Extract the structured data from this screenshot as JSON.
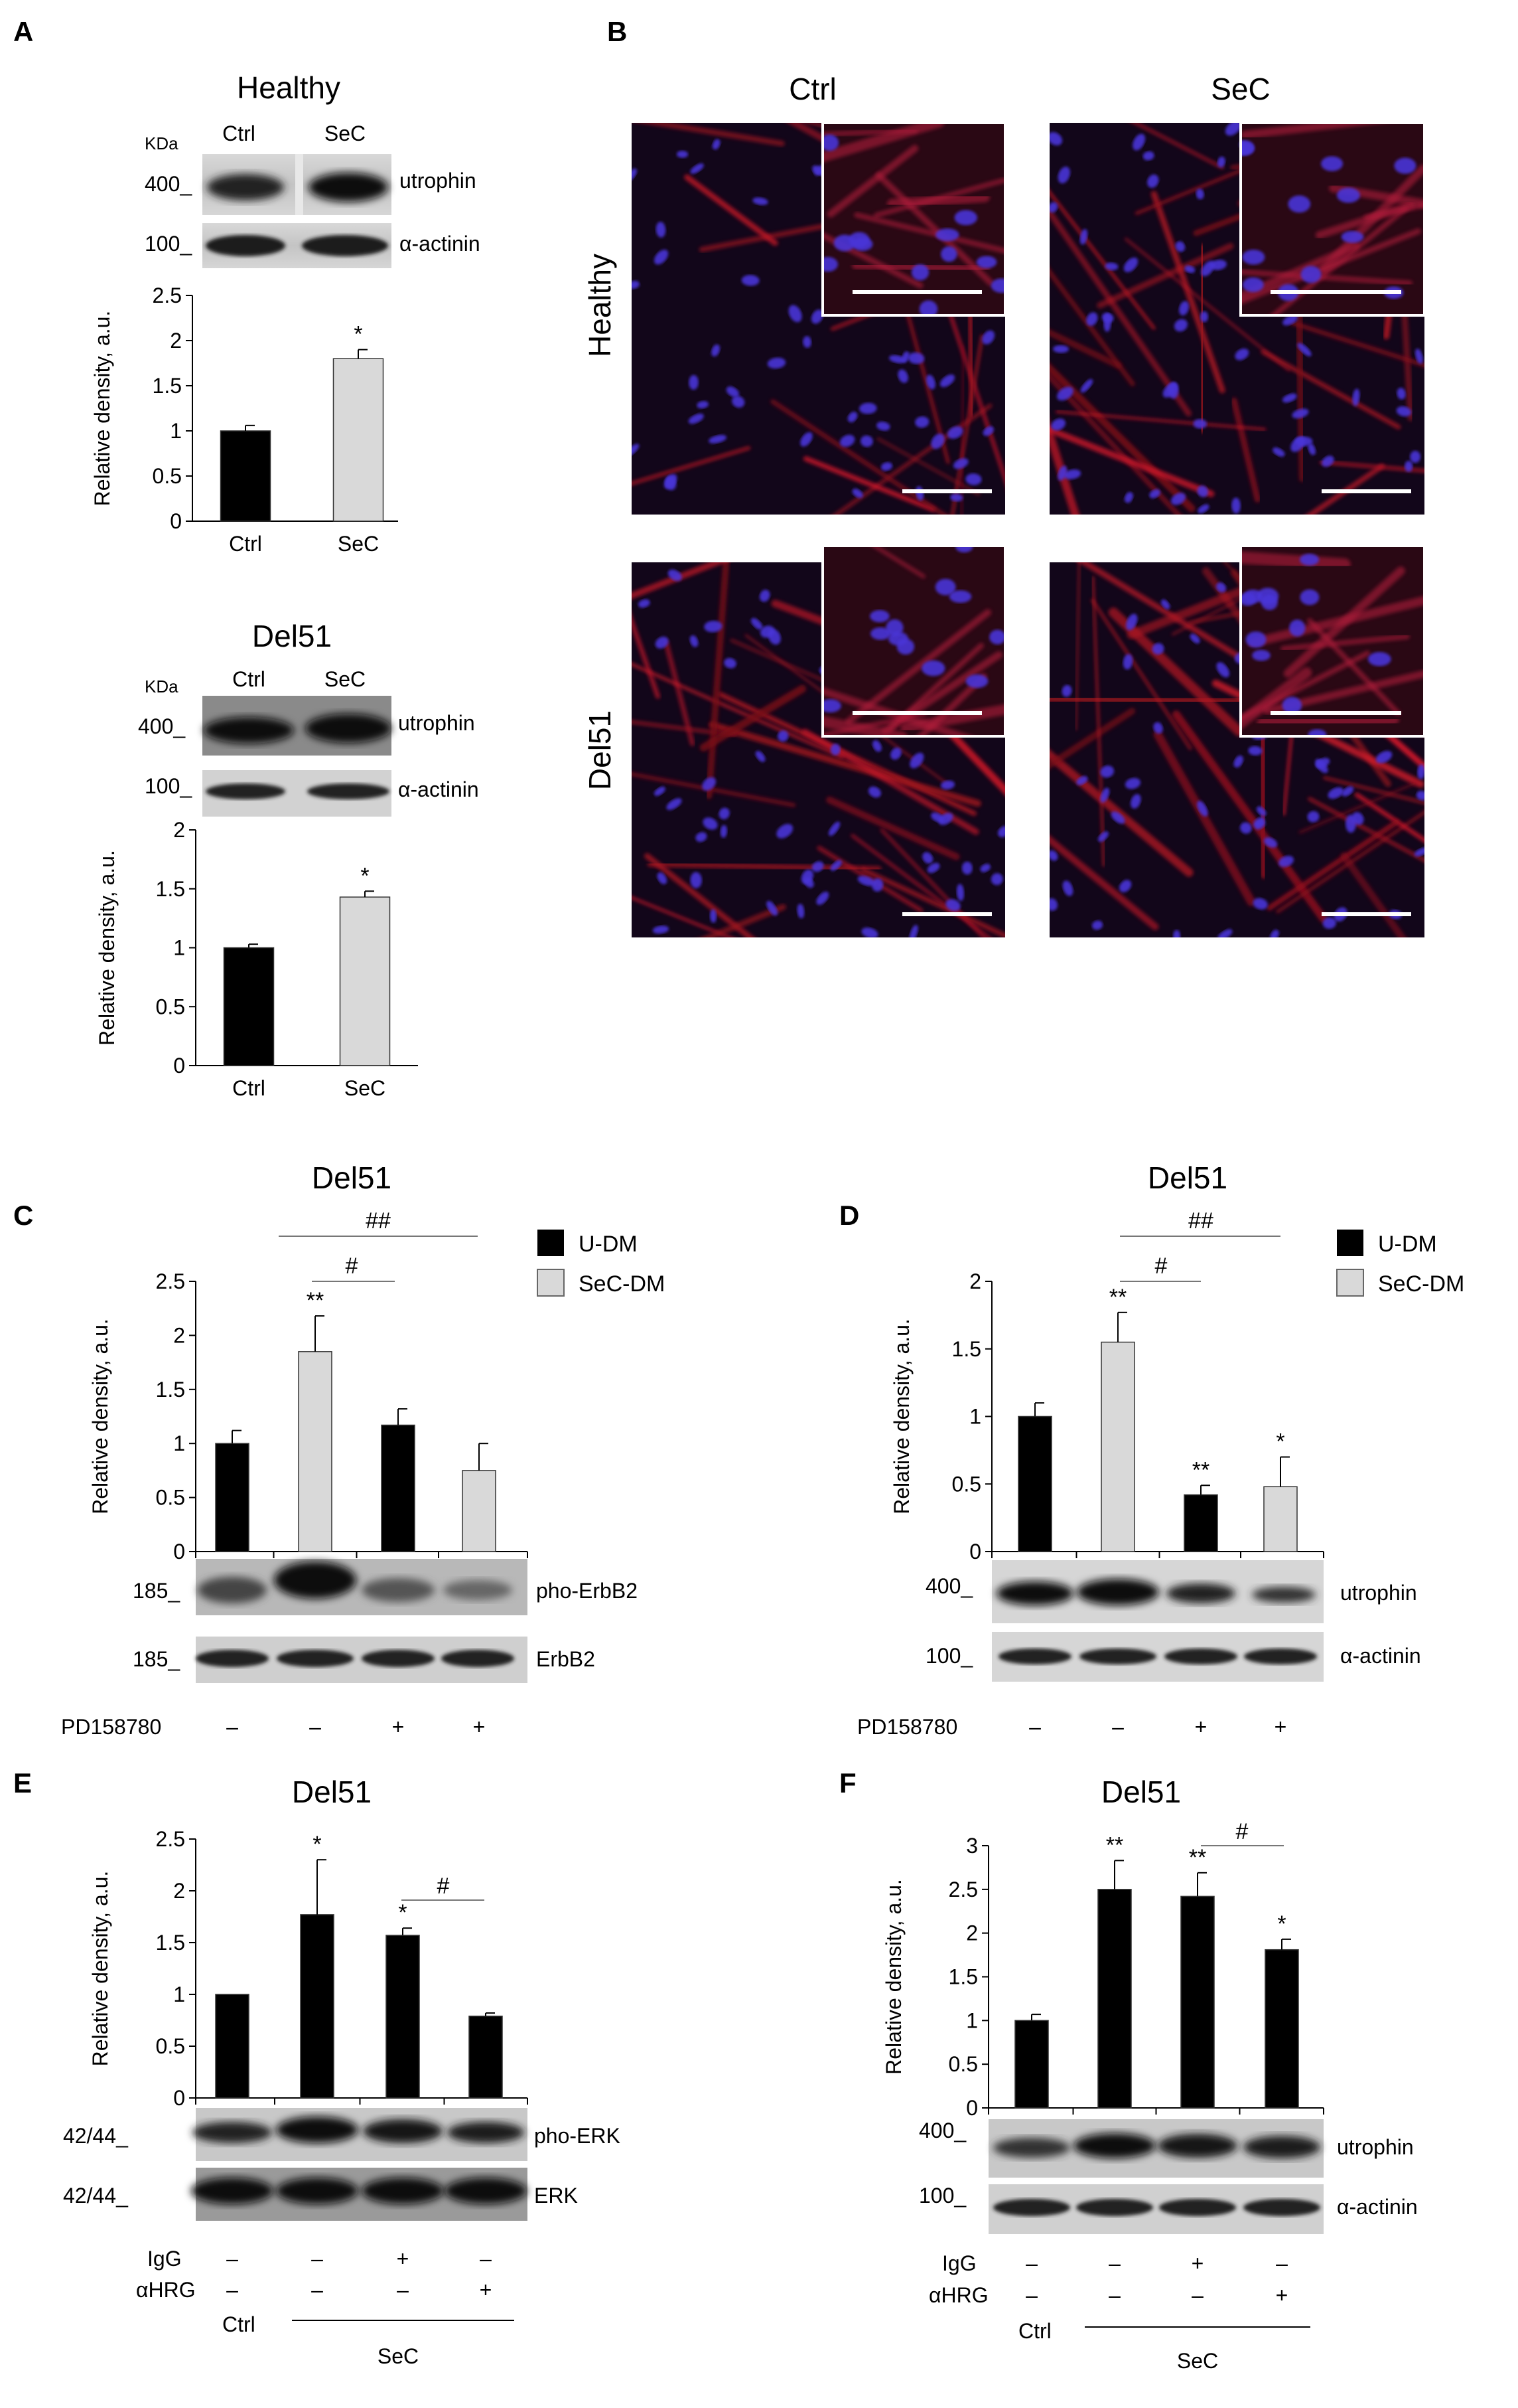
{
  "panels": {
    "A": {
      "letter": "A",
      "sub": [
        {
          "title": "Healthy",
          "kda": "KDa",
          "lanes": [
            "Ctrl",
            "SeC"
          ],
          "blot_labels": [
            "utrophin",
            "α-actinin"
          ],
          "markers": [
            "400_",
            "100_"
          ],
          "chart": {
            "ylabel": "Relative density, a.u.",
            "categories": [
              "Ctrl",
              "SeC"
            ],
            "values": [
              1.0,
              1.8
            ],
            "errors": [
              0.06,
              0.1
            ],
            "ticks": [
              "0",
              "0.5",
              "1",
              "1.5",
              "2",
              "2.5"
            ],
            "ymax": 2.5,
            "stars": [
              "",
              "*"
            ],
            "colors": [
              "#000000",
              "#d9d9d9"
            ]
          }
        },
        {
          "title": "Del51",
          "kda": "KDa",
          "lanes": [
            "Ctrl",
            "SeC"
          ],
          "blot_labels": [
            "utrophin",
            "α-actinin"
          ],
          "markers": [
            "400_",
            "100_"
          ],
          "chart": {
            "ylabel": "Relative density, a.u.",
            "categories": [
              "Ctrl",
              "SeC"
            ],
            "values": [
              1.0,
              1.43
            ],
            "errors": [
              0.03,
              0.05
            ],
            "ticks": [
              "0",
              "0.5",
              "1",
              "1.5",
              "2"
            ],
            "ymax": 2,
            "stars": [
              "",
              "*"
            ],
            "colors": [
              "#000000",
              "#d9d9d9"
            ]
          }
        }
      ]
    },
    "B": {
      "letter": "B",
      "cols": [
        "Ctrl",
        "SeC"
      ],
      "rows": [
        "Healthy",
        "Del51"
      ]
    },
    "C": {
      "letter": "C",
      "title": "Del51",
      "legend": [
        "U-DM",
        "SeC-DM"
      ],
      "blot_labels": [
        "pho-ErbB2",
        "ErbB2"
      ],
      "markers": [
        "185_",
        "185_"
      ],
      "treat_label": "PD158780",
      "treat_signs": [
        "–",
        "–",
        "+",
        "+"
      ],
      "hash1": "#",
      "hash2": "##",
      "chart": {
        "ylabel": "Relative density, a.u.",
        "values": [
          1.0,
          1.85,
          1.17,
          0.75
        ],
        "errors": [
          0.12,
          0.33,
          0.15,
          0.25
        ],
        "ticks": [
          "0",
          "0.5",
          "1",
          "1.5",
          "2",
          "2.5"
        ],
        "ymax": 2.5,
        "stars": [
          "",
          "**",
          "",
          ""
        ],
        "colors": [
          "#000000",
          "#d9d9d9",
          "#000000",
          "#d9d9d9"
        ]
      }
    },
    "D": {
      "letter": "D",
      "title": "Del51",
      "legend": [
        "U-DM",
        "SeC-DM"
      ],
      "blot_labels": [
        "utrophin",
        "α-actinin"
      ],
      "markers": [
        "400_",
        "100_"
      ],
      "treat_label": "PD158780",
      "treat_signs": [
        "–",
        "–",
        "+",
        "+"
      ],
      "hash1": "#",
      "hash2": "##",
      "chart": {
        "ylabel": "Relative density, a.u.",
        "values": [
          1.0,
          1.55,
          0.42,
          0.48
        ],
        "errors": [
          0.1,
          0.22,
          0.07,
          0.22
        ],
        "ticks": [
          "0",
          "0.5",
          "1",
          "1.5",
          "2"
        ],
        "ymax": 2,
        "stars": [
          "",
          "**",
          "**",
          "*"
        ],
        "colors": [
          "#000000",
          "#d9d9d9",
          "#000000",
          "#d9d9d9"
        ]
      }
    },
    "E": {
      "letter": "E",
      "title": "Del51",
      "blot_labels": [
        "pho-ERK",
        "ERK"
      ],
      "markers": [
        "42/44_",
        "42/44_"
      ],
      "igg_label": "IgG",
      "igg_signs": [
        "–",
        "–",
        "+",
        "–"
      ],
      "ahrg_label": "αHRG",
      "ahrg_signs": [
        "–",
        "–",
        "–",
        "+"
      ],
      "ctrl_label": "Ctrl",
      "sec_label": "SeC",
      "hash": "#",
      "chart": {
        "ylabel": "Relative density, a.u.",
        "values": [
          1.0,
          1.77,
          1.57,
          0.79
        ],
        "errors": [
          0.0,
          0.53,
          0.07,
          0.03
        ],
        "ticks": [
          "0",
          "0.5",
          "1",
          "1.5",
          "2",
          "2.5"
        ],
        "ymax": 2.5,
        "stars": [
          "",
          "*",
          "*",
          ""
        ],
        "colors": [
          "#000000",
          "#000000",
          "#000000",
          "#000000"
        ]
      }
    },
    "F": {
      "letter": "F",
      "title": "Del51",
      "blot_labels": [
        "utrophin",
        "α-actinin"
      ],
      "markers": [
        "400_",
        "100_"
      ],
      "igg_label": "IgG",
      "igg_signs": [
        "–",
        "–",
        "+",
        "–"
      ],
      "ahrg_label": "αHRG",
      "ahrg_signs": [
        "–",
        "–",
        "–",
        "+"
      ],
      "ctrl_label": "Ctrl",
      "sec_label": "SeC",
      "hash": "#",
      "chart": {
        "ylabel": "Relative density, a.u.",
        "values": [
          1.0,
          2.5,
          2.42,
          1.81
        ],
        "errors": [
          0.07,
          0.33,
          0.27,
          0.12
        ],
        "ticks": [
          "0",
          "0.5",
          "1",
          "1.5",
          "2",
          "2.5",
          "3"
        ],
        "ymax": 3,
        "stars": [
          "",
          "**",
          "**",
          "*"
        ],
        "colors": [
          "#000000",
          "#000000",
          "#000000",
          "#000000"
        ]
      }
    }
  },
  "chart_data": [
    {
      "type": "bar",
      "title": "Healthy",
      "categories": [
        "Ctrl",
        "SeC"
      ],
      "values": [
        1.0,
        1.8
      ],
      "ylabel": "Relative density, a.u.",
      "ylim": [
        0,
        2.5
      ]
    },
    {
      "type": "bar",
      "title": "Del51",
      "categories": [
        "Ctrl",
        "SeC"
      ],
      "values": [
        1.0,
        1.43
      ],
      "ylabel": "Relative density, a.u.",
      "ylim": [
        0,
        2
      ]
    },
    {
      "type": "bar",
      "title": "Del51",
      "series": [
        {
          "name": "U-DM",
          "values": [
            1.0,
            null,
            1.17,
            null
          ]
        },
        {
          "name": "SeC-DM",
          "values": [
            null,
            1.85,
            null,
            0.75
          ]
        }
      ],
      "ylabel": "Relative density, a.u.",
      "ylim": [
        0,
        2.5
      ]
    },
    {
      "type": "bar",
      "title": "Del51",
      "series": [
        {
          "name": "U-DM",
          "values": [
            1.0,
            null,
            0.42,
            null
          ]
        },
        {
          "name": "SeC-DM",
          "values": [
            null,
            1.55,
            null,
            0.48
          ]
        }
      ],
      "ylabel": "Relative density, a.u.",
      "ylim": [
        0,
        2
      ]
    },
    {
      "type": "bar",
      "title": "Del51",
      "values": [
        1.0,
        1.77,
        1.57,
        0.79
      ],
      "ylabel": "Relative density, a.u.",
      "ylim": [
        0,
        2.5
      ]
    },
    {
      "type": "bar",
      "title": "Del51",
      "values": [
        1.0,
        2.5,
        2.42,
        1.81
      ],
      "ylabel": "Relative density, a.u.",
      "ylim": [
        0,
        3
      ]
    }
  ]
}
